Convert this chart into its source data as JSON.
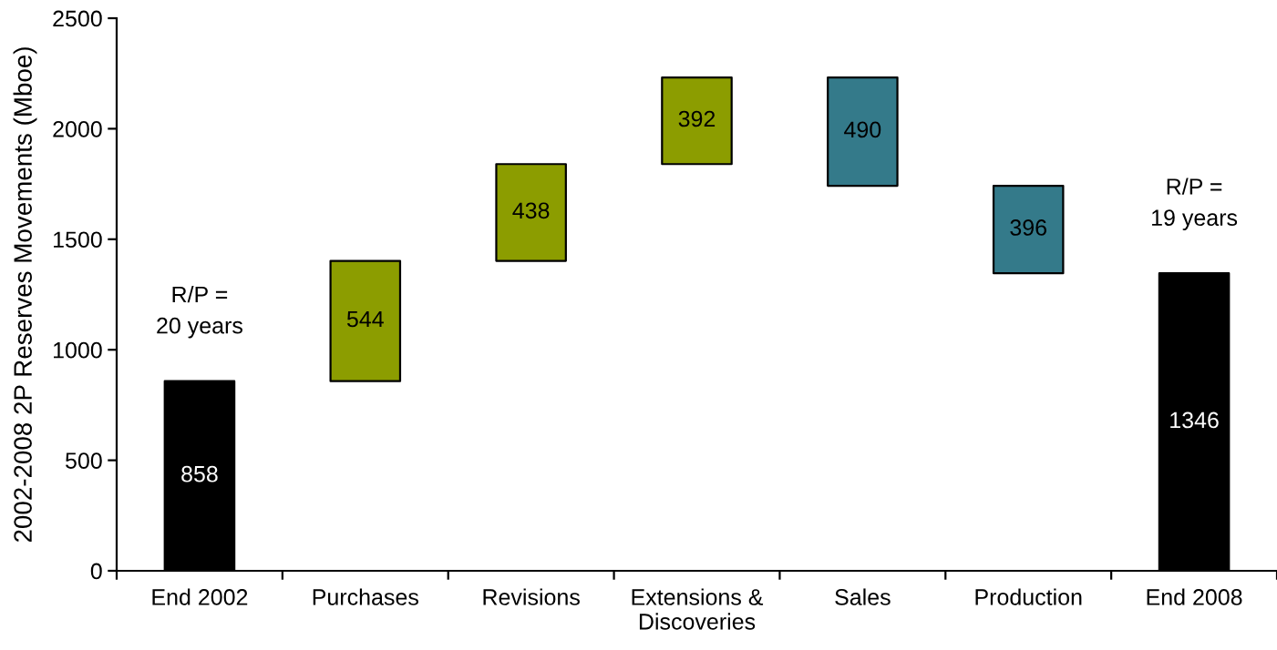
{
  "chart_data": {
    "type": "bar",
    "categories": [
      "End 2002",
      "Purchases",
      "Revisions",
      "Extensions &\nDiscoveries",
      "Sales",
      "Production",
      "End 2008"
    ],
    "values": [
      858,
      544,
      438,
      392,
      490,
      396,
      1346
    ],
    "base": [
      0,
      858,
      1402,
      1840,
      1742,
      1346,
      0
    ],
    "colors": [
      "#000000",
      "#8c9d00",
      "#8c9d00",
      "#8c9d00",
      "#347a8a",
      "#347a8a",
      "#000000"
    ],
    "ylabel": "2002-2008 2P Reserves Movements (Mboe)",
    "ylim": [
      0,
      2500
    ],
    "yticks": [
      0,
      500,
      1000,
      1500,
      2000,
      2500
    ],
    "data_labels": true,
    "grid": false,
    "annotations": [
      {
        "text": "R/P =\n20 years",
        "x": "End 2002",
        "y": 858
      },
      {
        "text": "R/P =\n19 years",
        "x": "End 2008",
        "y": 1346
      }
    ]
  }
}
